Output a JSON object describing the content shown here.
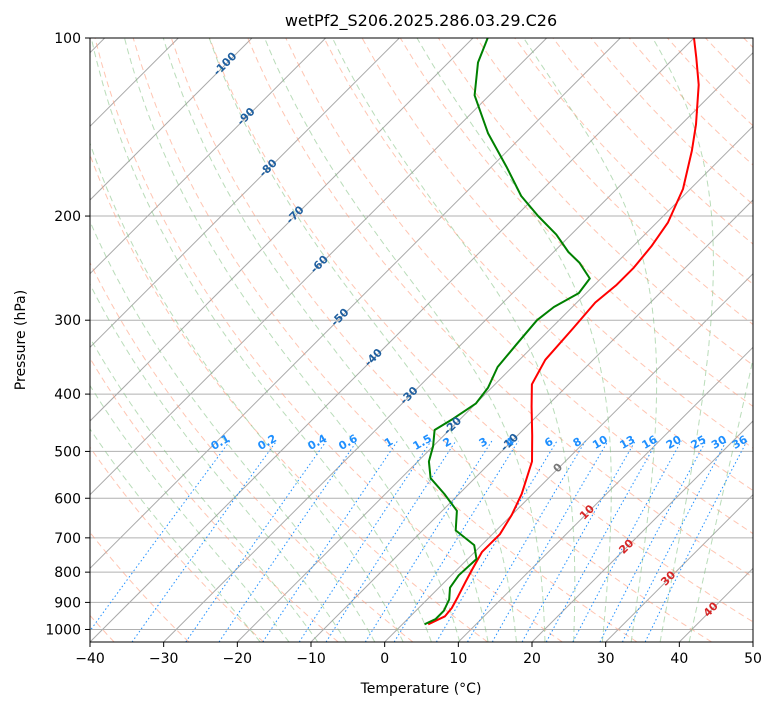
{
  "chart_data": {
    "type": "line",
    "title": "wetPf2_S206.2025.286.03.29.C26",
    "xlabel": "Temperature (°C)",
    "ylabel": "Pressure (hPa)",
    "xlim": [
      -40,
      50
    ],
    "ylim": [
      1050,
      100
    ],
    "x_ticks": [
      -40,
      -30,
      -20,
      -10,
      0,
      10,
      20,
      30,
      40,
      50
    ],
    "y_ticks": [
      1000,
      900,
      800,
      700,
      600,
      500,
      400,
      300,
      200,
      100
    ],
    "skew": "skew-T log-p",
    "series": [
      {
        "name": "Temperature",
        "color": "#ff0000",
        "points": [
          [
            3.5,
            980
          ],
          [
            4.7,
            950
          ],
          [
            4.5,
            920
          ],
          [
            3.8,
            880
          ],
          [
            2.8,
            830
          ],
          [
            2.0,
            790
          ],
          [
            1.0,
            740
          ],
          [
            1.0,
            690
          ],
          [
            0.0,
            640
          ],
          [
            -1.5,
            590
          ],
          [
            -4.5,
            520
          ],
          [
            -8.0,
            470
          ],
          [
            -12.0,
            420
          ],
          [
            -15.0,
            385
          ],
          [
            -16.5,
            350
          ],
          [
            -17.0,
            310
          ],
          [
            -17.5,
            280
          ],
          [
            -17.0,
            262
          ],
          [
            -17.0,
            245
          ],
          [
            -17.5,
            225
          ],
          [
            -18.5,
            205
          ],
          [
            -21.0,
            180
          ],
          [
            -25.0,
            155
          ],
          [
            -28.0,
            140
          ],
          [
            -33.0,
            120
          ],
          [
            -37.0,
            108
          ],
          [
            -40.0,
            100
          ]
        ]
      },
      {
        "name": "Dewpoint",
        "color": "#008000",
        "points": [
          [
            3.0,
            980
          ],
          [
            3.8,
            960
          ],
          [
            3.8,
            930
          ],
          [
            3.0,
            890
          ],
          [
            1.5,
            850
          ],
          [
            1.0,
            810
          ],
          [
            1.2,
            760
          ],
          [
            -1.0,
            720
          ],
          [
            -5.5,
            680
          ],
          [
            -8.0,
            630
          ],
          [
            -12.0,
            590
          ],
          [
            -16.0,
            555
          ],
          [
            -18.5,
            520
          ],
          [
            -20.0,
            490
          ],
          [
            -22.0,
            460
          ],
          [
            -21.0,
            440
          ],
          [
            -20.0,
            415
          ],
          [
            -20.5,
            390
          ],
          [
            -22.0,
            360
          ],
          [
            -22.5,
            330
          ],
          [
            -23.0,
            300
          ],
          [
            -22.5,
            285
          ],
          [
            -21.0,
            270
          ],
          [
            -21.5,
            255
          ],
          [
            -25.0,
            240
          ],
          [
            -28.0,
            230
          ],
          [
            -32.0,
            215
          ],
          [
            -37.0,
            200
          ],
          [
            -42.0,
            185
          ],
          [
            -48.0,
            165
          ],
          [
            -55.0,
            145
          ],
          [
            -62.0,
            125
          ],
          [
            -66.0,
            110
          ],
          [
            -68.0,
            100
          ]
        ]
      }
    ],
    "reference_lines": {
      "isotherms": "grey solid, every 10 °C",
      "dry_adiabats": "salmon dashed",
      "moist_adiabats": "green dashed",
      "mixing_ratio": "blue dotted"
    },
    "mixing_ratio_labels": [
      "0.1",
      "0.2",
      "0.4",
      "0.6",
      "1",
      "1.5",
      "2",
      "3",
      "4",
      "6",
      "8",
      "10",
      "13",
      "16",
      "20",
      "25",
      "30",
      "36"
    ],
    "mixing_ratio_values": [
      0.1,
      0.2,
      0.4,
      0.6,
      1,
      1.5,
      2,
      3,
      4,
      6,
      8,
      10,
      13,
      16,
      20,
      25,
      30,
      36
    ],
    "isotherm_labels": [
      {
        "text": "-100",
        "value": -100,
        "at_p": 110
      },
      {
        "text": "-90",
        "value": -90,
        "at_p": 135
      },
      {
        "text": "-80",
        "value": -80,
        "at_p": 165
      },
      {
        "text": "-70",
        "value": -70,
        "at_p": 198
      },
      {
        "text": "-60",
        "value": -60,
        "at_p": 240
      },
      {
        "text": "-50",
        "value": -50,
        "at_p": 295
      },
      {
        "text": "-40",
        "value": -40,
        "at_p": 345
      },
      {
        "text": "-30",
        "value": -30,
        "at_p": 400
      },
      {
        "text": "-20",
        "value": -20,
        "at_p": 450
      },
      {
        "text": "-10",
        "value": -10,
        "at_p": 480
      },
      {
        "text": "0",
        "value": 0,
        "at_p": 530
      },
      {
        "text": "10",
        "value": 10,
        "at_p": 630
      },
      {
        "text": "20",
        "value": 20,
        "at_p": 720
      },
      {
        "text": "30",
        "value": 30,
        "at_p": 815
      },
      {
        "text": "40",
        "value": 40,
        "at_p": 920
      }
    ],
    "colors": {
      "isotherm_label_blue": "#1f5f9f",
      "mixing_ratio_blue": "#1e8fff",
      "isotherm_label_red": "#d62728",
      "zero_label": "#777777"
    }
  }
}
